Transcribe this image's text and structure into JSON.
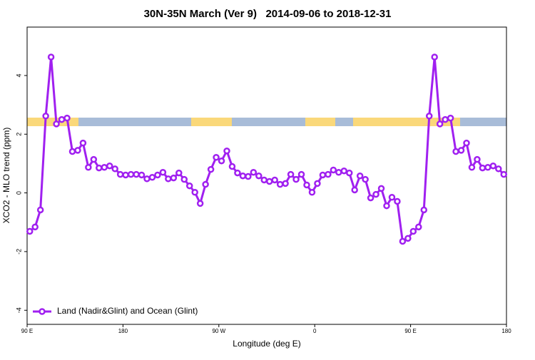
{
  "chart_data": {
    "type": "line",
    "title": "30N-35N March (Ver 9)   2014-09-06 to 2018-12-31",
    "x_label": "Longitude (deg E)",
    "y_label": "XCO2 - MLO trend (ppm)",
    "x": [
      92.5,
      97.5,
      102.5,
      107.5,
      112.5,
      117.5,
      122.5,
      127.5,
      132.5,
      137.5,
      142.5,
      147.5,
      152.5,
      157.5,
      162.5,
      167.5,
      172.5,
      177.5,
      182.5,
      187.5,
      192.5,
      197.5,
      202.5,
      207.5,
      212.5,
      217.5,
      222.5,
      227.5,
      232.5,
      237.5,
      242.5,
      247.5,
      252.5,
      257.5,
      262.5,
      267.5,
      272.5,
      277.5,
      282.5,
      287.5,
      292.5,
      297.5,
      302.5,
      307.5,
      312.5,
      317.5,
      322.5,
      327.5,
      332.5,
      337.5,
      342.5,
      347.5,
      352.5,
      357.5,
      362.5,
      367.5,
      372.5,
      377.5,
      382.5,
      387.5,
      392.5,
      397.5,
      402.5,
      407.5,
      412.5,
      417.5,
      422.5,
      427.5,
      432.5,
      437.5,
      442.5,
      447.5,
      452.5,
      457.5,
      462.5,
      467.5,
      472.5,
      477.5,
      482.5,
      487.5,
      492.5,
      497.5,
      502.5,
      507.5,
      512.5,
      517.5,
      522.5,
      527.5,
      532.5,
      537.5
    ],
    "series": [
      {
        "name": "Land (Nadir&Glint) and Ocean (Glint)",
        "color": "#a020f0",
        "values": [
          -1.31,
          -1.16,
          -0.58,
          2.62,
          4.63,
          2.35,
          2.5,
          2.55,
          1.41,
          1.45,
          1.7,
          0.87,
          1.14,
          0.85,
          0.87,
          0.92,
          0.82,
          0.63,
          0.61,
          0.63,
          0.63,
          0.61,
          0.48,
          0.53,
          0.61,
          0.7,
          0.48,
          0.51,
          0.68,
          0.46,
          0.24,
          0.02,
          -0.36,
          0.29,
          0.8,
          1.21,
          1.09,
          1.43,
          0.9,
          0.68,
          0.58,
          0.56,
          0.7,
          0.58,
          0.44,
          0.39,
          0.44,
          0.29,
          0.32,
          0.63,
          0.46,
          0.63,
          0.27,
          0.02,
          0.32,
          0.61,
          0.63,
          0.78,
          0.7,
          0.75,
          0.68,
          0.1,
          0.58,
          0.46,
          -0.17,
          -0.05,
          0.15,
          -0.44,
          -0.15,
          -0.29,
          -1.65,
          -1.55,
          -1.31,
          -1.16,
          -0.58,
          2.62,
          4.63,
          2.35,
          2.5,
          2.55,
          1.41,
          1.45,
          1.7,
          0.87,
          1.14,
          0.85,
          0.87,
          0.92,
          0.82,
          0.63
        ]
      }
    ],
    "xlim": [
      90,
      540
    ],
    "xticks": [
      {
        "value": 90,
        "label": "90 E"
      },
      {
        "value": 180,
        "label": "180"
      },
      {
        "value": 270,
        "label": "90 W"
      },
      {
        "value": 360,
        "label": "0"
      },
      {
        "value": 450,
        "label": "90 E"
      },
      {
        "value": 540,
        "label": "180"
      }
    ],
    "ylim": [
      -4.48,
      5.65
    ],
    "yticks": [
      -4,
      -2,
      0,
      2,
      4
    ],
    "legend_position": "bottom-left"
  }
}
